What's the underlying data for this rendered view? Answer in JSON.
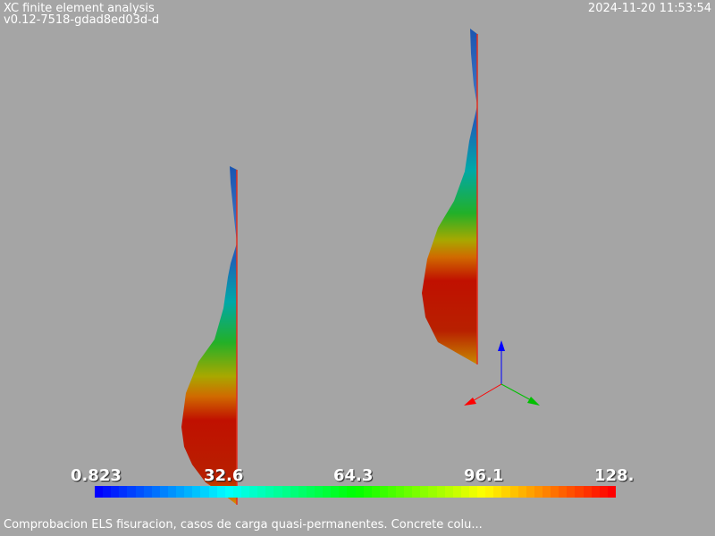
{
  "header": {
    "app_title": "XC finite element analysis",
    "version": "v0.12-7518-gdad8ed03d-d",
    "timestamp": "2024-11-20 11:53:54"
  },
  "scalar_bar": {
    "tick_labels": [
      "0.823",
      "32.6",
      "64.3",
      "96.1",
      "128."
    ],
    "colormap": [
      "#0000ff",
      "#00ffff",
      "#00ff00",
      "#ffff00",
      "#ff0000"
    ]
  },
  "caption": "Comprobacion ELS fisuracion, casos de carga quasi-permanentes. Concrete colu...",
  "axes": {
    "x_color": "#ff0000",
    "y_color": "#00c000",
    "z_color": "#0000ff"
  },
  "icons": [
    "axes-triad-icon"
  ]
}
